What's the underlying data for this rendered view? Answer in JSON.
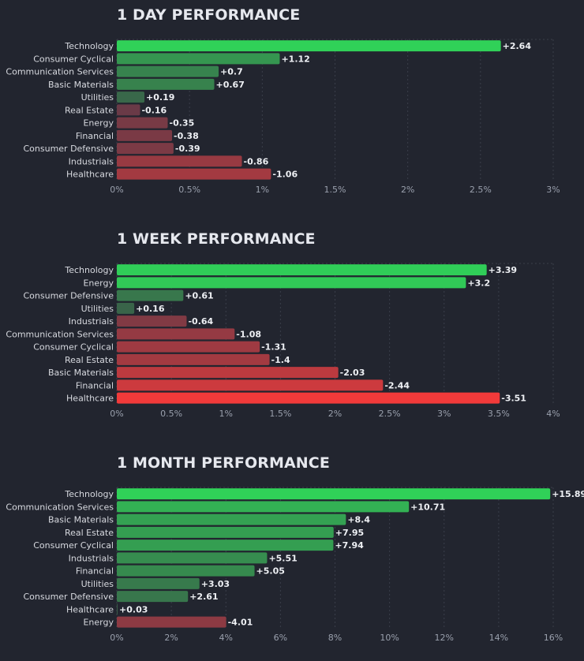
{
  "chart_data": [
    {
      "type": "bar",
      "orientation": "horizontal",
      "title": "1 DAY PERFORMANCE",
      "categories": [
        "Technology",
        "Consumer Cyclical",
        "Communication Services",
        "Basic Materials",
        "Utilities",
        "Real Estate",
        "Energy",
        "Financial",
        "Consumer Defensive",
        "Industrials",
        "Healthcare"
      ],
      "values": [
        2.64,
        1.12,
        0.7,
        0.67,
        0.19,
        -0.16,
        -0.35,
        -0.38,
        -0.39,
        -0.86,
        -1.06
      ],
      "value_labels": [
        "+2.64",
        "+1.12",
        "+0.7",
        "+0.67",
        "+0.19",
        "-0.16",
        "-0.35",
        "-0.38",
        "-0.39",
        "-0.86",
        "-1.06"
      ],
      "ticks": [
        0,
        0.5,
        1,
        1.5,
        2,
        2.5,
        3
      ],
      "tick_labels": [
        "0%",
        "0.5%",
        "1%",
        "1.5%",
        "2%",
        "2.5%",
        "3%"
      ],
      "xlim": [
        0,
        3
      ],
      "xlabel": "",
      "ylabel": "",
      "grid": true
    },
    {
      "type": "bar",
      "orientation": "horizontal",
      "title": "1 WEEK PERFORMANCE",
      "categories": [
        "Technology",
        "Energy",
        "Consumer Defensive",
        "Utilities",
        "Industrials",
        "Communication Services",
        "Consumer Cyclical",
        "Real Estate",
        "Basic Materials",
        "Financial",
        "Healthcare"
      ],
      "values": [
        3.39,
        3.2,
        0.61,
        0.16,
        -0.64,
        -1.08,
        -1.31,
        -1.4,
        -2.03,
        -2.44,
        -3.51
      ],
      "value_labels": [
        "+3.39",
        "+3.2",
        "+0.61",
        "+0.16",
        "-0.64",
        "-1.08",
        "-1.31",
        "-1.4",
        "-2.03",
        "-2.44",
        "-3.51"
      ],
      "ticks": [
        0,
        0.5,
        1,
        1.5,
        2,
        2.5,
        3,
        3.5,
        4
      ],
      "tick_labels": [
        "0%",
        "0.5%",
        "1%",
        "1.5%",
        "2%",
        "2.5%",
        "3%",
        "3.5%",
        "4%"
      ],
      "xlim": [
        0,
        4
      ],
      "xlabel": "",
      "ylabel": "",
      "grid": true
    },
    {
      "type": "bar",
      "orientation": "horizontal",
      "title": "1 MONTH PERFORMANCE",
      "categories": [
        "Technology",
        "Communication Services",
        "Basic Materials",
        "Real Estate",
        "Consumer Cyclical",
        "Industrials",
        "Financial",
        "Utilities",
        "Consumer Defensive",
        "Healthcare",
        "Energy"
      ],
      "values": [
        15.89,
        10.71,
        8.4,
        7.95,
        7.94,
        5.51,
        5.05,
        3.03,
        2.61,
        0.03,
        -4.01
      ],
      "value_labels": [
        "+15.89",
        "+10.71",
        "+8.4",
        "+7.95",
        "+7.94",
        "+5.51",
        "+5.05",
        "+3.03",
        "+2.61",
        "+0.03",
        "-4.01"
      ],
      "ticks": [
        0,
        2,
        4,
        6,
        8,
        10,
        12,
        14,
        16
      ],
      "tick_labels": [
        "0%",
        "2%",
        "4%",
        "6%",
        "8%",
        "10%",
        "12%",
        "14%",
        "16%"
      ],
      "xlim": [
        0,
        16
      ],
      "xlabel": "",
      "ylabel": "",
      "grid": true
    }
  ],
  "colors": {
    "background": "#22252f",
    "positive_strong": "#30d158",
    "positive_weak": "#3a5a48",
    "negative_strong": "#f23a3a",
    "negative_weak": "#5a3a48",
    "grid": "#3a3e4a"
  }
}
